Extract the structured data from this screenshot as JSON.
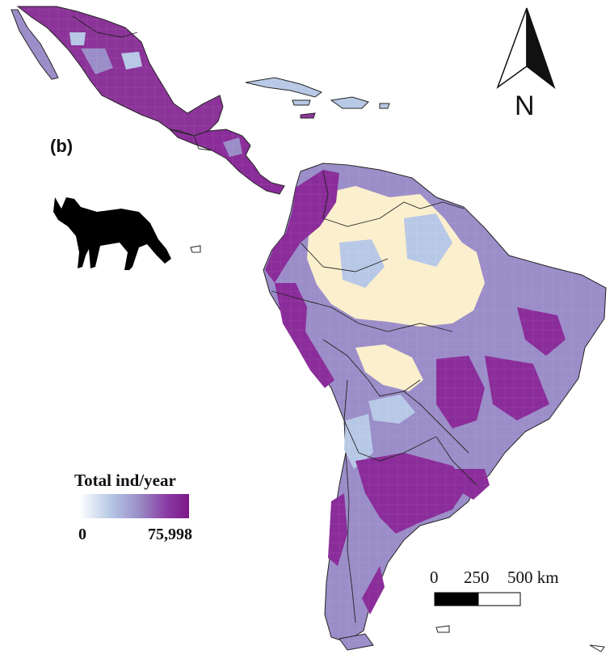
{
  "panel_label": "(b)",
  "legend": {
    "title": "Total ind/year",
    "min_label": "0",
    "max_label": "75,998",
    "color_low": "#ffffff",
    "color_mid": "#9a8cc6",
    "color_high": "#7d1788"
  },
  "scale_bar": {
    "labels": [
      "0",
      "250",
      "500 km"
    ]
  },
  "north_arrow": {
    "label": "N"
  },
  "colors": {
    "no_data_cell": "#fbefcd",
    "low_cell": "#b7c8e6",
    "mid_cell": "#9b8dc8",
    "high_cell": "#8b2c9a",
    "border": "#222222"
  },
  "icons": {
    "animal": "fox-silhouette-icon"
  }
}
